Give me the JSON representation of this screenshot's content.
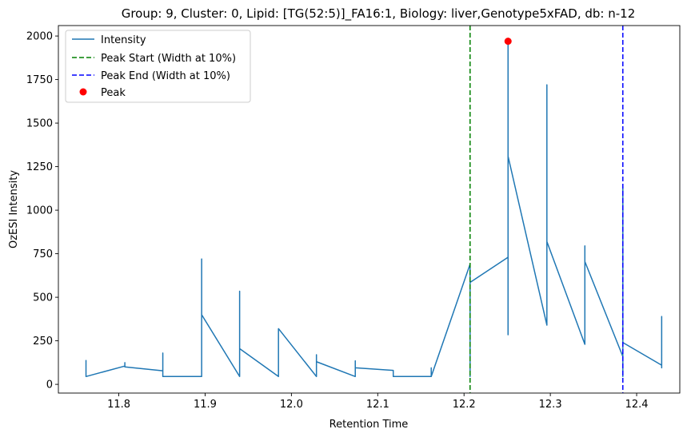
{
  "chart_data": {
    "type": "line",
    "title": "Group: 9, Cluster: 0, Lipid: [TG(52:5)]_FA16:1, Biology: liver,Genotype5xFAD, db: n-12",
    "xlabel": "Retention Time",
    "ylabel": "OzESI Intensity",
    "xlim": [
      11.73,
      12.45
    ],
    "ylim": [
      -50,
      2060
    ],
    "x_ticks": [
      11.8,
      11.9,
      12.0,
      12.1,
      12.2,
      12.3,
      12.4
    ],
    "x_tick_labels": [
      "11.8",
      "11.9",
      "12.0",
      "12.1",
      "12.2",
      "12.3",
      "12.4"
    ],
    "y_ticks": [
      0,
      250,
      500,
      750,
      1000,
      1250,
      1500,
      1750,
      2000
    ],
    "y_tick_labels": [
      "0",
      "250",
      "500",
      "750",
      "1000",
      "1250",
      "1500",
      "1750",
      "2000"
    ],
    "grid": false,
    "legend_position": "top-left",
    "series": [
      {
        "name": "Intensity",
        "color": "#1f77b4",
        "points": [
          [
            11.762,
            140
          ],
          [
            11.762,
            45
          ],
          [
            11.807,
            105
          ],
          [
            11.807,
            125
          ],
          [
            11.807,
            100
          ],
          [
            11.851,
            78
          ],
          [
            11.851,
            180
          ],
          [
            11.851,
            45
          ],
          [
            11.896,
            45
          ],
          [
            11.896,
            720
          ],
          [
            11.896,
            400
          ],
          [
            11.94,
            45
          ],
          [
            11.94,
            535
          ],
          [
            11.94,
            205
          ],
          [
            11.985,
            45
          ],
          [
            11.985,
            320
          ],
          [
            12.029,
            45
          ],
          [
            12.029,
            170
          ],
          [
            12.029,
            130
          ],
          [
            12.074,
            45
          ],
          [
            12.074,
            135
          ],
          [
            12.074,
            95
          ],
          [
            12.118,
            80
          ],
          [
            12.118,
            45
          ],
          [
            12.162,
            45
          ],
          [
            12.162,
            95
          ],
          [
            12.162,
            45
          ],
          [
            12.207,
            690
          ],
          [
            12.207,
            45
          ],
          [
            12.207,
            585
          ],
          [
            12.251,
            730
          ],
          [
            12.251,
            1970
          ],
          [
            12.251,
            285
          ],
          [
            12.251,
            1310
          ],
          [
            12.296,
            340
          ],
          [
            12.296,
            1720
          ],
          [
            12.296,
            820
          ],
          [
            12.34,
            230
          ],
          [
            12.34,
            795
          ],
          [
            12.34,
            705
          ],
          [
            12.384,
            160
          ],
          [
            12.384,
            1140
          ],
          [
            12.384,
            45
          ],
          [
            12.384,
            240
          ],
          [
            12.429,
            110
          ],
          [
            12.429,
            390
          ],
          [
            12.429,
            95
          ],
          [
            12.429,
            180
          ]
        ]
      }
    ],
    "vlines": [
      {
        "name": "Peak Start (Width at 10%)",
        "x": 12.207,
        "color": "#008000",
        "style": "dashed"
      },
      {
        "name": "Peak End (Width at 10%)",
        "x": 12.384,
        "color": "#0000ff",
        "style": "dashed"
      }
    ],
    "markers": [
      {
        "name": "Peak",
        "x": 12.251,
        "y": 1970,
        "color": "#ff0000"
      }
    ]
  }
}
